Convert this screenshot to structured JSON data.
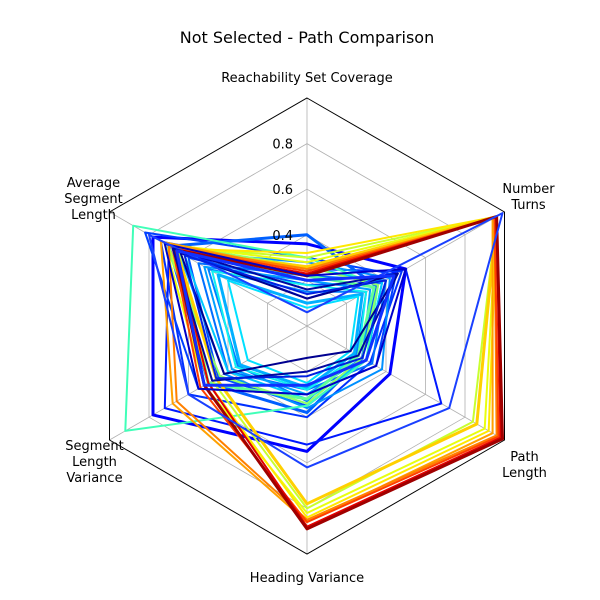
{
  "chart_data": {
    "type": "radar",
    "title": "Not Selected - Path Comparison",
    "axes": [
      {
        "name": "reachability",
        "lines": [
          "Reachability Set Coverage"
        ]
      },
      {
        "name": "number-turns",
        "lines": [
          "Number",
          "Turns"
        ]
      },
      {
        "name": "path-length",
        "lines": [
          "Path",
          "Length"
        ]
      },
      {
        "name": "heading-variance",
        "lines": [
          "Heading Variance"
        ]
      },
      {
        "name": "segment-length-variance",
        "lines": [
          "Segment",
          "Length",
          "Variance"
        ]
      },
      {
        "name": "average-segment-length",
        "lines": [
          "Average",
          "Segment",
          "Length"
        ]
      }
    ],
    "rmax": 1.0,
    "ticks": [
      0.2,
      0.4,
      0.6,
      0.8
    ],
    "tick_labels": [
      "",
      "0.4",
      "0.6",
      "0.8"
    ],
    "colormap": "jet",
    "series": [
      {
        "color": "#0000ff",
        "values": [
          0.36,
          0.5,
          0.42,
          0.55,
          0.78,
          0.78
        ]
      },
      {
        "color": "#0018ff",
        "values": [
          0.12,
          0.5,
          0.68,
          0.52,
          0.72,
          0.7
        ]
      },
      {
        "color": "#0030ff",
        "values": [
          0.25,
          0.48,
          0.32,
          0.4,
          0.6,
          0.74
        ]
      },
      {
        "color": "#0040ff",
        "values": [
          0.3,
          0.45,
          0.35,
          0.3,
          0.55,
          0.82
        ]
      },
      {
        "color": "#0050ff",
        "values": [
          0.18,
          0.38,
          0.3,
          0.35,
          0.45,
          0.6
        ]
      },
      {
        "color": "#0060ff",
        "values": [
          0.4,
          0.35,
          0.28,
          0.38,
          0.5,
          0.7
        ]
      },
      {
        "color": "#0070ff",
        "values": [
          0.22,
          0.4,
          0.33,
          0.28,
          0.4,
          0.55
        ]
      },
      {
        "color": "#0080ff",
        "values": [
          0.15,
          0.3,
          0.25,
          0.33,
          0.35,
          0.5
        ]
      },
      {
        "color": "#0090ff",
        "values": [
          0.28,
          0.42,
          0.38,
          0.36,
          0.42,
          0.65
        ]
      },
      {
        "color": "#00a0ff",
        "values": [
          0.2,
          0.32,
          0.28,
          0.3,
          0.38,
          0.52
        ]
      },
      {
        "color": "#00b0ff",
        "values": [
          0.1,
          0.28,
          0.24,
          0.27,
          0.34,
          0.45
        ]
      },
      {
        "color": "#00c8ff",
        "values": [
          0.26,
          0.38,
          0.3,
          0.32,
          0.4,
          0.62
        ]
      },
      {
        "color": "#00e0ff",
        "values": [
          0.08,
          0.26,
          0.22,
          0.25,
          0.3,
          0.4
        ]
      },
      {
        "color": "#10f0ef",
        "values": [
          0.18,
          0.3,
          0.26,
          0.28,
          0.36,
          0.48
        ]
      },
      {
        "color": "#40ffb8",
        "values": [
          0.3,
          0.36,
          0.3,
          0.35,
          0.92,
          0.88
        ]
      },
      {
        "color": "#60ff98",
        "values": [
          0.22,
          0.34,
          0.26,
          0.32,
          0.5,
          0.65
        ]
      },
      {
        "color": "#90ff68",
        "values": [
          0.26,
          0.36,
          0.28,
          0.34,
          0.44,
          0.72
        ]
      },
      {
        "color": "#c8ff30",
        "values": [
          0.3,
          0.96,
          0.84,
          0.8,
          0.48,
          0.7
        ]
      },
      {
        "color": "#e8ff10",
        "values": [
          0.28,
          0.96,
          0.9,
          0.82,
          0.52,
          0.72
        ]
      },
      {
        "color": "#ffe800",
        "values": [
          0.32,
          0.96,
          0.92,
          0.84,
          0.5,
          0.68
        ]
      },
      {
        "color": "#ffd000",
        "values": [
          0.26,
          0.96,
          0.86,
          0.78,
          0.46,
          0.66
        ]
      },
      {
        "color": "#ffa000",
        "values": [
          0.24,
          0.94,
          0.94,
          0.86,
          0.68,
          0.74
        ]
      },
      {
        "color": "#ff8000",
        "values": [
          0.25,
          0.95,
          0.96,
          0.85,
          0.66,
          0.7
        ]
      },
      {
        "color": "#ff4000",
        "values": [
          0.24,
          0.95,
          0.97,
          0.86,
          0.54,
          0.68
        ]
      },
      {
        "color": "#e00000",
        "values": [
          0.23,
          0.96,
          0.98,
          0.88,
          0.5,
          0.66
        ]
      },
      {
        "color": "#a00000",
        "values": [
          0.22,
          0.96,
          0.99,
          0.89,
          0.52,
          0.67
        ]
      },
      {
        "color": "#0000c8",
        "values": [
          0.22,
          0.5,
          0.35,
          0.3,
          0.55,
          0.72
        ]
      },
      {
        "color": "#000090",
        "values": [
          0.12,
          0.46,
          0.22,
          0.14,
          0.42,
          0.64
        ]
      },
      {
        "color": "#1a40ff",
        "values": [
          0.06,
          0.99,
          0.72,
          0.62,
          0.6,
          0.8
        ]
      },
      {
        "color": "#0008a0",
        "values": [
          0.16,
          0.46,
          0.26,
          0.2,
          0.48,
          0.68
        ]
      },
      {
        "color": "#1030ff",
        "values": [
          0.2,
          0.44,
          0.3,
          0.26,
          0.52,
          0.66
        ]
      },
      {
        "color": "#0020e0",
        "values": [
          0.14,
          0.4,
          0.28,
          0.22,
          0.46,
          0.62
        ]
      }
    ]
  }
}
